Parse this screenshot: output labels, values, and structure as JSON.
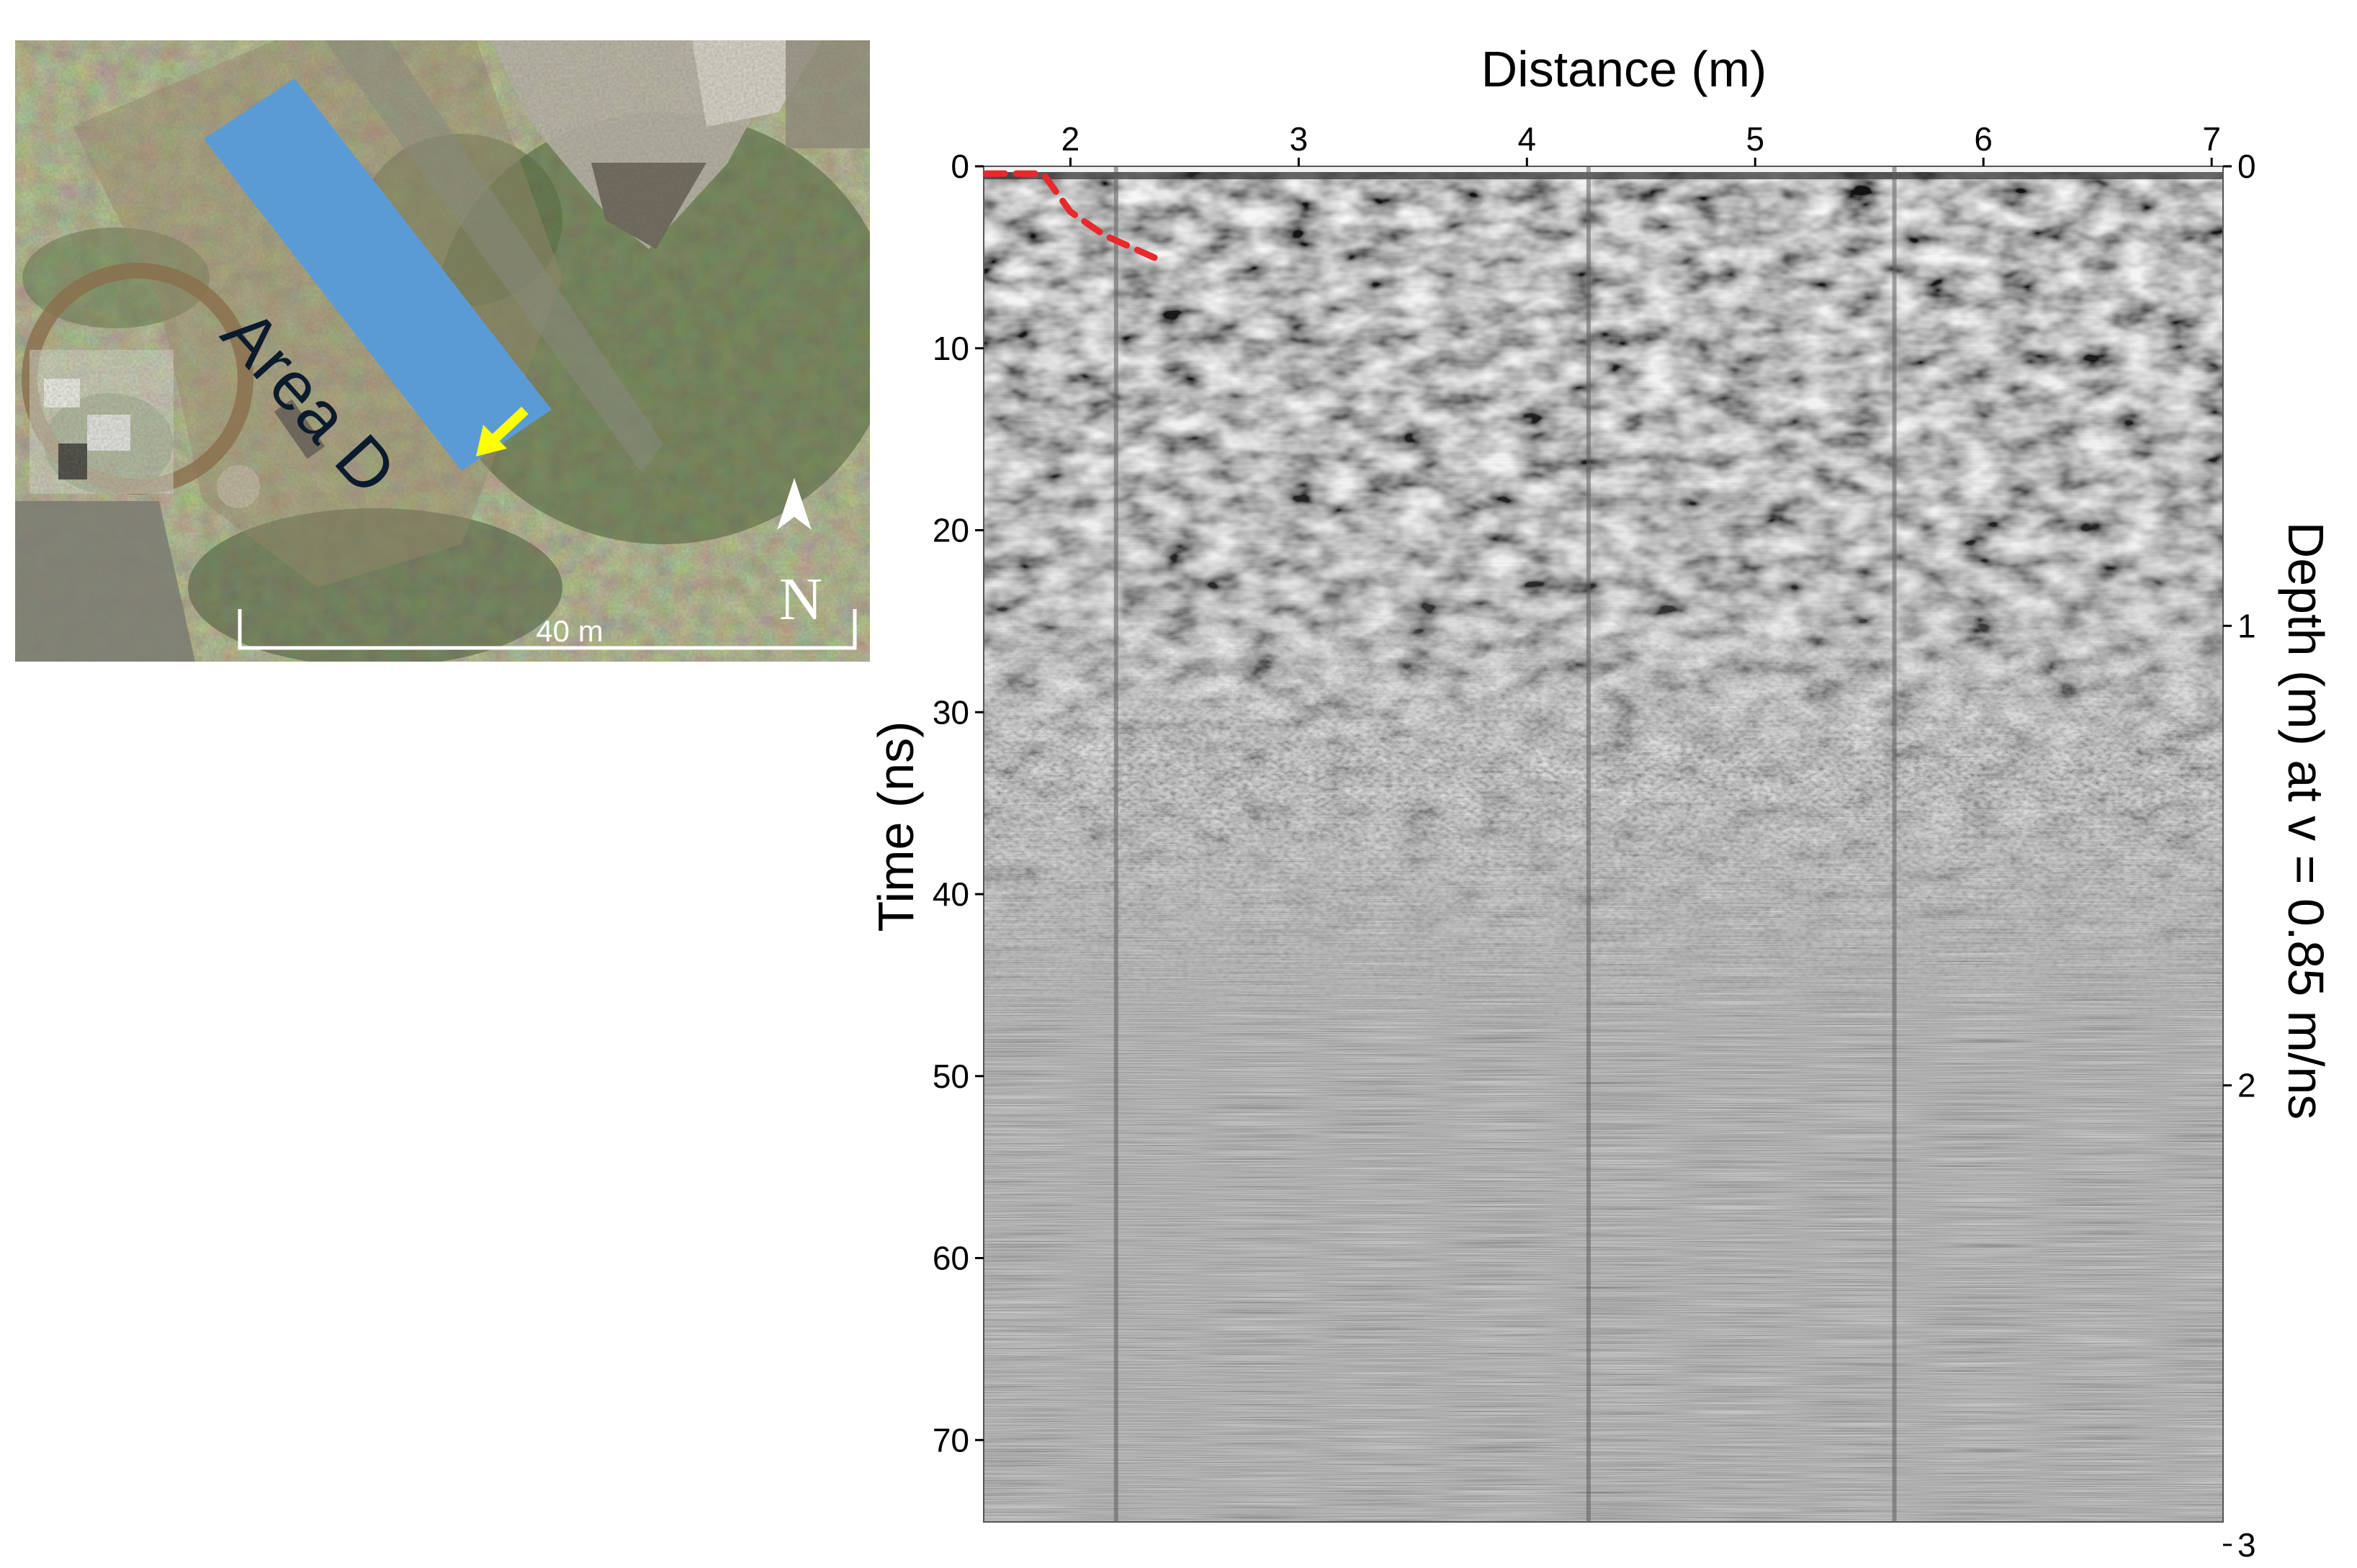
{
  "map_inset": {
    "area_label": "Area D",
    "north_label": "N",
    "scale_label": "40 m",
    "colors": {
      "area_fill": "#5b9bd5",
      "arrow": "#ffff00",
      "scale_bar": "#ffffff"
    }
  },
  "chart_data": {
    "type": "heatmap",
    "description_of_data": "GPR radargram (grayscale reflection amplitude)",
    "xlabel": "Distance (m)",
    "ylabel": "Time (ns)",
    "y2label": "Depth (m) at v = 0.85 m/ns",
    "x_ticks": [
      2,
      3,
      4,
      5,
      6,
      7
    ],
    "xlim": [
      1.62,
      7.05
    ],
    "y_ticks": [
      0,
      10,
      20,
      30,
      40,
      50,
      60,
      70
    ],
    "ylim": [
      0,
      74.5
    ],
    "y2_ticks": [
      0,
      1,
      2,
      3
    ],
    "y2lim": [
      0,
      2.95
    ],
    "interpreted_boundary": {
      "color": "#e8282a",
      "style": "dashed",
      "x": [
        1.63,
        1.88,
        2.0,
        2.15,
        2.4
      ],
      "y": [
        0.4,
        0.4,
        2.5,
        3.8,
        5.2
      ]
    },
    "trace_breaks_x": [
      2.2,
      4.27,
      5.61
    ],
    "grid": false,
    "legend": "none"
  }
}
